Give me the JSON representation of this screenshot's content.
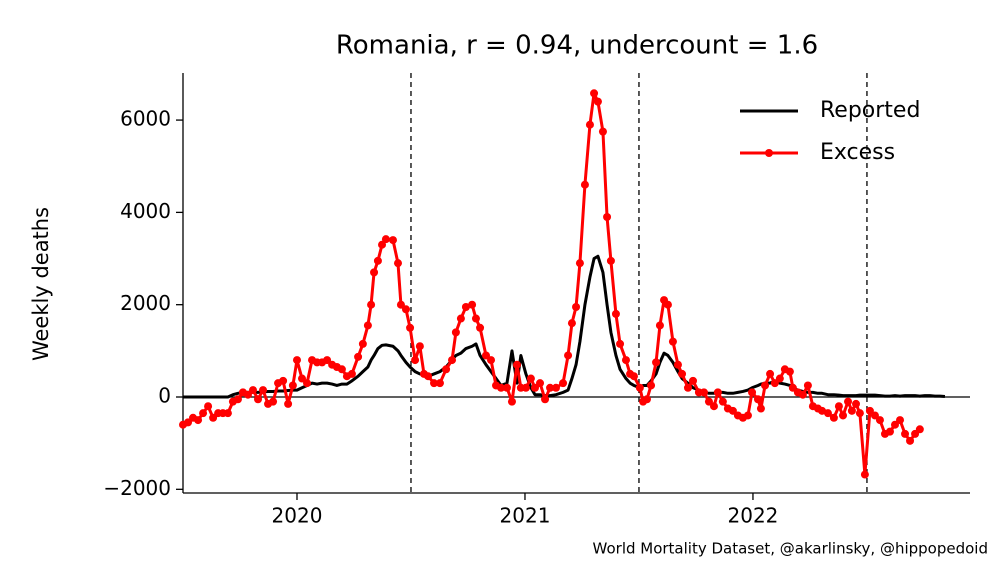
{
  "chart_data": {
    "type": "line",
    "title": "Romania, r = 0.94, undercount = 1.6",
    "y_label": "Weekly deaths",
    "source": "World Mortality Dataset, @akarlinsky, @hippopedoid",
    "xlim": [
      2019.5,
      2022.952
    ],
    "ylim": [
      -2080,
      7020
    ],
    "xticks": [
      2020,
      2021,
      2022
    ],
    "yticks": [
      {
        "value": -2000,
        "label": "−2000"
      },
      0,
      2000,
      4000,
      6000
    ],
    "vlines": [
      2020.5,
      2021.5,
      2022.5
    ],
    "legend": "upper right",
    "x": [
      2019.5,
      2019.522,
      2019.544,
      2019.566,
      2019.588,
      2019.61,
      2019.632,
      2019.654,
      2019.675,
      2019.697,
      2019.719,
      2019.741,
      2019.763,
      2019.785,
      2019.807,
      2019.829,
      2019.851,
      2019.873,
      2019.895,
      2019.917,
      2019.939,
      2019.961,
      2019.982,
      2020.0,
      2020.022,
      2020.044,
      2020.066,
      2020.088,
      2020.11,
      2020.132,
      2020.154,
      2020.175,
      2020.197,
      2020.219,
      2020.241,
      2020.268,
      2020.289,
      2020.311,
      2020.325,
      2020.338,
      2020.355,
      2020.373,
      2020.39,
      2020.421,
      2020.443,
      2020.456,
      2020.478,
      2020.496,
      2020.518,
      2020.539,
      2020.557,
      2020.575,
      2020.601,
      2020.627,
      2020.654,
      2020.68,
      2020.697,
      2020.719,
      2020.741,
      2020.768,
      2020.785,
      2020.803,
      2020.829,
      2020.851,
      2020.873,
      2020.895,
      2020.921,
      2020.943,
      2020.965,
      2020.982,
      2021.004,
      2021.026,
      2021.044,
      2021.066,
      2021.088,
      2021.11,
      2021.136,
      2021.167,
      2021.189,
      2021.206,
      2021.224,
      2021.241,
      2021.263,
      2021.285,
      2021.303,
      2021.32,
      2021.342,
      2021.36,
      2021.377,
      2021.399,
      2021.417,
      2021.443,
      2021.461,
      2021.478,
      2021.504,
      2021.518,
      2021.535,
      2021.553,
      2021.575,
      2021.592,
      2021.61,
      2021.627,
      2021.649,
      2021.671,
      2021.689,
      2021.715,
      2021.737,
      2021.763,
      2021.785,
      2021.807,
      2021.829,
      2021.846,
      2021.868,
      2021.89,
      2021.912,
      2021.934,
      2021.956,
      2021.978,
      2021.996,
      2022.022,
      2022.035,
      2022.053,
      2022.075,
      2022.096,
      2022.118,
      2022.14,
      2022.162,
      2022.175,
      2022.197,
      2022.219,
      2022.241,
      2022.263,
      2022.285,
      2022.303,
      2022.329,
      2022.355,
      2022.377,
      2022.395,
      2022.417,
      2022.434,
      2022.452,
      2022.469,
      2022.491,
      2022.513,
      2022.535,
      2022.557,
      2022.579,
      2022.601,
      2022.623,
      2022.645,
      2022.667,
      2022.689,
      2022.711,
      2022.732,
      2022.754,
      2022.776,
      2022.798,
      2022.82,
      2022.842
    ],
    "series": [
      {
        "name": "Reported",
        "color": "#000000",
        "markers": false,
        "values": [
          0,
          0,
          0,
          0,
          0,
          0,
          0,
          0,
          0,
          0,
          50,
          80,
          100,
          100,
          100,
          100,
          110,
          120,
          120,
          130,
          130,
          140,
          150,
          150,
          200,
          250,
          300,
          280,
          300,
          300,
          280,
          250,
          280,
          280,
          350,
          450,
          550,
          650,
          800,
          900,
          1050,
          1120,
          1130,
          1100,
          1000,
          900,
          750,
          650,
          550,
          500,
          480,
          450,
          500,
          550,
          650,
          800,
          900,
          950,
          1050,
          1100,
          1150,
          900,
          700,
          550,
          400,
          250,
          300,
          1000,
          300,
          900,
          500,
          200,
          50,
          50,
          30,
          30,
          50,
          100,
          150,
          400,
          700,
          1200,
          2000,
          2600,
          3000,
          3050,
          2700,
          2000,
          1400,
          900,
          600,
          400,
          300,
          250,
          200,
          250,
          250,
          350,
          500,
          750,
          950,
          900,
          750,
          550,
          400,
          300,
          200,
          150,
          100,
          80,
          80,
          100,
          100,
          80,
          80,
          100,
          120,
          150,
          200,
          250,
          280,
          300,
          300,
          350,
          300,
          280,
          250,
          200,
          150,
          120,
          100,
          100,
          80,
          80,
          50,
          50,
          40,
          30,
          30,
          30,
          30,
          40,
          40,
          40,
          40,
          30,
          20,
          20,
          30,
          20,
          30,
          30,
          30,
          20,
          30,
          30,
          20,
          20,
          10
        ]
      },
      {
        "name": "Excess",
        "color": "#ff0000",
        "markers": true,
        "values": [
          -600,
          -550,
          -450,
          -500,
          -350,
          -200,
          -450,
          -350,
          -350,
          -350,
          -100,
          -50,
          100,
          50,
          150,
          -50,
          150,
          -150,
          -100,
          300,
          350,
          -150,
          250,
          800,
          400,
          300,
          800,
          750,
          750,
          800,
          700,
          650,
          600,
          450,
          500,
          870,
          1150,
          1550,
          2000,
          2700,
          2950,
          3300,
          3420,
          3400,
          2900,
          2000,
          1900,
          1500,
          800,
          1100,
          500,
          450,
          300,
          300,
          600,
          800,
          1400,
          1700,
          1950,
          2000,
          1700,
          1500,
          900,
          800,
          250,
          200,
          200,
          -100,
          700,
          200,
          200,
          400,
          200,
          300,
          -50,
          200,
          200,
          300,
          900,
          1600,
          1950,
          2900,
          4600,
          5900,
          6580,
          6400,
          5750,
          3900,
          2950,
          1800,
          1150,
          800,
          500,
          450,
          200,
          -100,
          -50,
          250,
          750,
          1550,
          2100,
          2000,
          1200,
          700,
          500,
          200,
          350,
          100,
          100,
          -100,
          -200,
          100,
          -100,
          -250,
          -300,
          -400,
          -450,
          -400,
          100,
          -50,
          -250,
          250,
          500,
          300,
          400,
          600,
          550,
          200,
          100,
          50,
          250,
          -200,
          -250,
          -300,
          -350,
          -450,
          -200,
          -400,
          -100,
          -300,
          -150,
          -350,
          -1680,
          -300,
          -400,
          -500,
          -800,
          -750,
          -600,
          -500,
          -800,
          -950,
          -800,
          -700,
          null,
          null,
          null,
          null,
          null
        ]
      }
    ]
  }
}
